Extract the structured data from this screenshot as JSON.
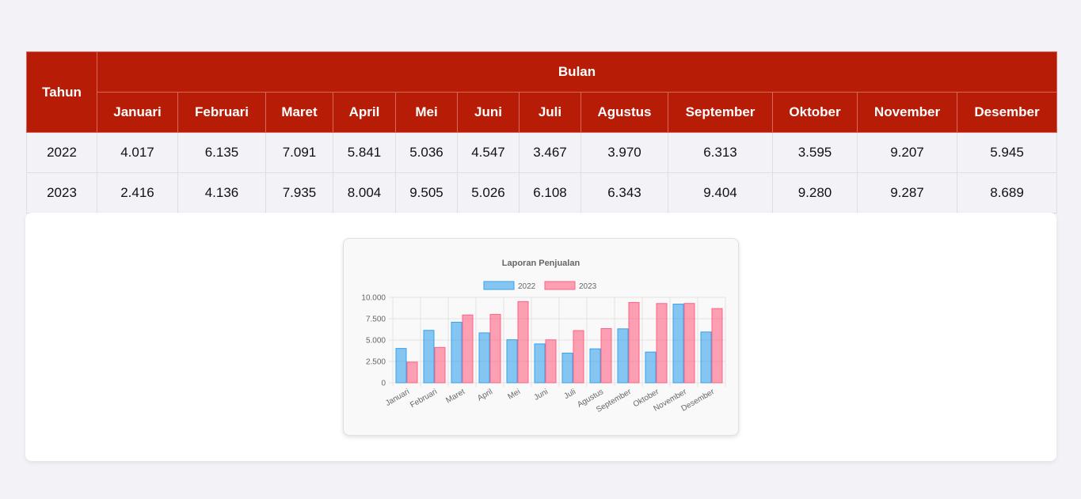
{
  "table": {
    "year_header": "Tahun",
    "month_group_header": "Bulan",
    "months": [
      "Januari",
      "Februari",
      "Maret",
      "April",
      "Mei",
      "Juni",
      "Juli",
      "Agustus",
      "September",
      "Oktober",
      "November",
      "Desember"
    ],
    "rows": [
      {
        "year": "2022",
        "values": [
          "4.017",
          "6.135",
          "7.091",
          "5.841",
          "5.036",
          "4.547",
          "3.467",
          "3.970",
          "6.313",
          "3.595",
          "9.207",
          "5.945"
        ]
      },
      {
        "year": "2023",
        "values": [
          "2.416",
          "4.136",
          "7.935",
          "8.004",
          "9.505",
          "5.026",
          "6.108",
          "6.343",
          "9.404",
          "9.280",
          "9.287",
          "8.689"
        ]
      }
    ]
  },
  "chart_data": {
    "type": "bar",
    "title": "Laporan Penjualan",
    "categories": [
      "Januari",
      "Februari",
      "Maret",
      "April",
      "Mei",
      "Juni",
      "Juli",
      "Agustus",
      "September",
      "Oktober",
      "November",
      "Desember"
    ],
    "series": [
      {
        "name": "2022",
        "color": "#36a2eb",
        "values": [
          4017,
          6135,
          7091,
          5841,
          5036,
          4547,
          3467,
          3970,
          6313,
          3595,
          9207,
          5945
        ]
      },
      {
        "name": "2023",
        "color": "#ff6384",
        "values": [
          2416,
          4136,
          7935,
          8004,
          9505,
          5026,
          6108,
          6343,
          9404,
          9280,
          9287,
          8689
        ]
      }
    ],
    "y_ticks": [
      "0",
      "2.500",
      "5.000",
      "7.500",
      "10.000"
    ],
    "ylim": [
      0,
      10000
    ],
    "legend_position": "top",
    "grid": true,
    "xlabel": "",
    "ylabel": ""
  }
}
